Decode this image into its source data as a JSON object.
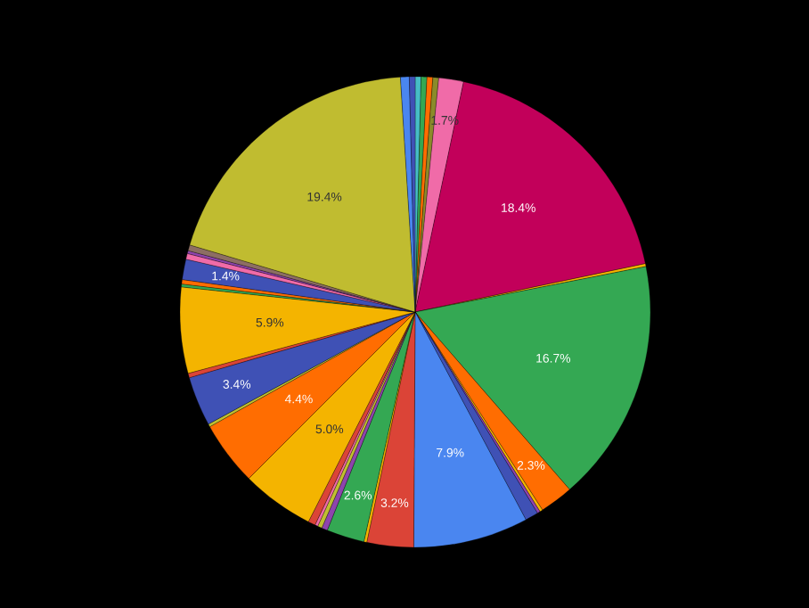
{
  "chart_data": {
    "type": "pie",
    "categories": [
      null,
      null,
      null,
      null,
      null,
      null,
      null,
      null,
      null,
      null,
      null,
      null,
      null,
      null,
      null,
      null,
      null,
      null,
      null,
      null,
      null,
      null,
      null,
      null,
      null,
      null,
      null,
      null,
      null,
      null,
      null,
      null,
      null,
      null,
      null
    ],
    "values": [
      0.4,
      0.4,
      0.4,
      0.4,
      1.7,
      18.4,
      0.2,
      16.7,
      2.3,
      0.2,
      0.2,
      0.9,
      7.9,
      3.2,
      0.2,
      2.6,
      0.4,
      0.3,
      0.2,
      0.5,
      5.0,
      4.4,
      0.2,
      3.4,
      0.3,
      5.9,
      0.2,
      0.3,
      1.4,
      0.4,
      0.2,
      0.4,
      19.4,
      0.6,
      0.4
    ],
    "colors": [
      "#46bdc6",
      "#34a853",
      "#ff6d01",
      "#8b8b2a",
      "#f06ba8",
      "#c2005a",
      "#f4b400",
      "#34a853",
      "#ff6d01",
      "#f4b400",
      "#8e44ad",
      "#3f51b5",
      "#4a86f0",
      "#db4437",
      "#f4b400",
      "#34a853",
      "#8e44ad",
      "#c0c030",
      "#f06ba8",
      "#db4437",
      "#f4b400",
      "#ff6d01",
      "#c0c030",
      "#3f51b5",
      "#db4437",
      "#f4b400",
      "#34a853",
      "#ff6d01",
      "#3f51b5",
      "#f06ba8",
      "#8e44ad",
      "#8d6e63",
      "#c0bc30",
      "#4a86f0",
      "#3f51b5"
    ],
    "value_labels": [
      null,
      null,
      null,
      null,
      "1.7%",
      "18.4%",
      null,
      "16.7%",
      "2.3%",
      null,
      null,
      null,
      "7.9%",
      "3.2%",
      null,
      "2.6%",
      null,
      null,
      null,
      null,
      "5.0%",
      "4.4%",
      null,
      "3.4%",
      null,
      "5.9%",
      null,
      null,
      "1.4%",
      null,
      null,
      null,
      "19.4%",
      null,
      null
    ],
    "legend": false
  }
}
